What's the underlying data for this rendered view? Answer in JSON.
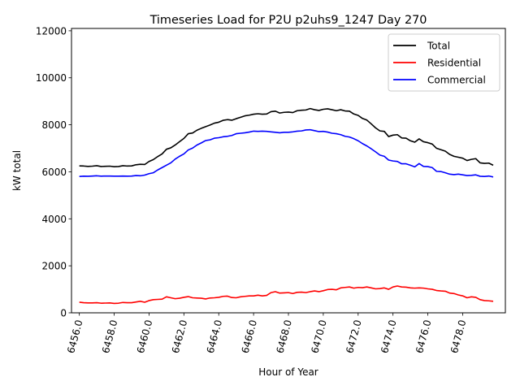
{
  "chart_data": {
    "type": "line",
    "title": "Timeseries Load for P2U p2uhs9_1247  Day 270",
    "xlabel": "Hour of Year",
    "ylabel": "kW total",
    "xlim": [
      6455.55,
      6480.45
    ],
    "ylim": [
      0,
      12100
    ],
    "x_ticks": [
      6456,
      6458,
      6460,
      6462,
      6464,
      6466,
      6468,
      6470,
      6472,
      6474,
      6476,
      6478
    ],
    "x_tick_labels": [
      "6456.0",
      "6458.0",
      "6460.0",
      "6462.0",
      "6464.0",
      "6466.0",
      "6468.0",
      "6470.0",
      "6472.0",
      "6474.0",
      "6476.0",
      "6478.0"
    ],
    "y_ticks": [
      0,
      2000,
      4000,
      6000,
      8000,
      10000,
      12000
    ],
    "y_tick_labels": [
      "0",
      "2000",
      "4000",
      "6000",
      "8000",
      "10000",
      "12000"
    ],
    "legend_position": "top-right",
    "x": [
      6456.0,
      6456.25,
      6456.5,
      6456.75,
      6457.0,
      6457.25,
      6457.5,
      6457.75,
      6458.0,
      6458.25,
      6458.5,
      6458.75,
      6459.0,
      6459.25,
      6459.5,
      6459.75,
      6460.0,
      6460.25,
      6460.5,
      6460.75,
      6461.0,
      6461.25,
      6461.5,
      6461.75,
      6462.0,
      6462.25,
      6462.5,
      6462.75,
      6463.0,
      6463.25,
      6463.5,
      6463.75,
      6464.0,
      6464.25,
      6464.5,
      6464.75,
      6465.0,
      6465.25,
      6465.5,
      6465.75,
      6466.0,
      6466.25,
      6466.5,
      6466.75,
      6467.0,
      6467.25,
      6467.5,
      6467.75,
      6468.0,
      6468.25,
      6468.5,
      6468.75,
      6469.0,
      6469.25,
      6469.5,
      6469.75,
      6470.0,
      6470.25,
      6470.5,
      6470.75,
      6471.0,
      6471.25,
      6471.5,
      6471.75,
      6472.0,
      6472.25,
      6472.5,
      6472.75,
      6473.0,
      6473.25,
      6473.5,
      6473.75,
      6474.0,
      6474.25,
      6474.5,
      6474.75,
      6475.0,
      6475.25,
      6475.5,
      6475.75,
      6476.0,
      6476.25,
      6476.5,
      6476.75,
      6477.0,
      6477.25,
      6477.5,
      6477.75,
      6478.0,
      6478.25,
      6478.5,
      6478.75,
      6479.0,
      6479.25,
      6479.5,
      6479.75
    ],
    "series": [
      {
        "name": "Total",
        "color": "#000000",
        "values": [
          6250,
          6245,
          6230,
          6240,
          6260,
          6225,
          6235,
          6240,
          6215,
          6225,
          6260,
          6245,
          6250,
          6300,
          6320,
          6310,
          6440,
          6520,
          6650,
          6760,
          6960,
          7020,
          7140,
          7280,
          7420,
          7620,
          7650,
          7770,
          7850,
          7920,
          7990,
          8070,
          8110,
          8190,
          8220,
          8195,
          8260,
          8320,
          8380,
          8410,
          8450,
          8470,
          8450,
          8460,
          8560,
          8580,
          8500,
          8530,
          8540,
          8520,
          8600,
          8620,
          8630,
          8690,
          8640,
          8610,
          8660,
          8680,
          8640,
          8600,
          8640,
          8590,
          8580,
          8460,
          8400,
          8270,
          8200,
          8040,
          7870,
          7740,
          7720,
          7500,
          7560,
          7580,
          7440,
          7430,
          7320,
          7260,
          7400,
          7280,
          7240,
          7180,
          7000,
          6940,
          6880,
          6740,
          6660,
          6620,
          6580,
          6480,
          6530,
          6560,
          6380,
          6360,
          6370,
          6280
        ]
      },
      {
        "name": "Residential",
        "color": "#ff0000",
        "values": [
          450,
          430,
          420,
          420,
          430,
          410,
          415,
          420,
          400,
          410,
          440,
          430,
          430,
          460,
          490,
          450,
          520,
          560,
          570,
          580,
          680,
          640,
          600,
          620,
          660,
          690,
          640,
          630,
          620,
          590,
          630,
          640,
          660,
          700,
          710,
          650,
          640,
          680,
          700,
          720,
          720,
          750,
          720,
          740,
          860,
          900,
          840,
          850,
          860,
          820,
          870,
          880,
          860,
          900,
          930,
          900,
          940,
          990,
          1000,
          980,
          1060,
          1080,
          1100,
          1050,
          1080,
          1070,
          1100,
          1060,
          1020,
          1030,
          1060,
          1000,
          1100,
          1140,
          1100,
          1090,
          1060,
          1050,
          1060,
          1050,
          1020,
          1000,
          950,
          930,
          920,
          840,
          820,
          760,
          720,
          640,
          680,
          660,
          560,
          520,
          510,
          490
        ]
      },
      {
        "name": "Commercial",
        "color": "#0000ff",
        "values": [
          5800,
          5815,
          5810,
          5820,
          5830,
          5815,
          5820,
          5820,
          5815,
          5815,
          5820,
          5815,
          5820,
          5840,
          5830,
          5860,
          5920,
          5960,
          6080,
          6180,
          6280,
          6380,
          6540,
          6660,
          6760,
          6930,
          7010,
          7140,
          7230,
          7330,
          7360,
          7430,
          7450,
          7490,
          7510,
          7545,
          7620,
          7640,
          7660,
          7690,
          7730,
          7720,
          7730,
          7720,
          7700,
          7680,
          7660,
          7680,
          7680,
          7700,
          7730,
          7740,
          7780,
          7790,
          7750,
          7710,
          7720,
          7690,
          7640,
          7620,
          7580,
          7510,
          7480,
          7410,
          7320,
          7200,
          7100,
          6980,
          6850,
          6710,
          6660,
          6500,
          6460,
          6440,
          6340,
          6340,
          6280,
          6210,
          6350,
          6230,
          6220,
          6180,
          6020,
          6010,
          5960,
          5900,
          5880,
          5900,
          5870,
          5840,
          5850,
          5870,
          5810,
          5800,
          5820,
          5780
        ]
      }
    ]
  }
}
